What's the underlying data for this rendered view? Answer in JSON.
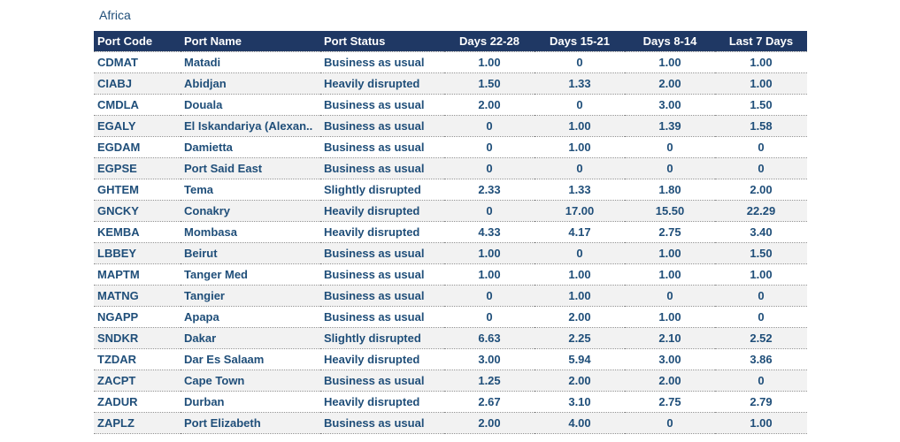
{
  "title": "Africa",
  "table": {
    "columns": [
      {
        "label": "Port Code",
        "align": "left"
      },
      {
        "label": "Port Name",
        "align": "left"
      },
      {
        "label": "Port Status",
        "align": "left"
      },
      {
        "label": "Days 22-28",
        "align": "center"
      },
      {
        "label": "Days 15-21",
        "align": "center"
      },
      {
        "label": "Days 8-14",
        "align": "center"
      },
      {
        "label": "Last 7 Days",
        "align": "center"
      }
    ],
    "rows": [
      [
        "CDMAT",
        "Matadi",
        "Business as usual",
        "1.00",
        "0",
        "1.00",
        "1.00"
      ],
      [
        "CIABJ",
        "Abidjan",
        "Heavily disrupted",
        "1.50",
        "1.33",
        "2.00",
        "1.00"
      ],
      [
        "CMDLA",
        "Douala",
        "Business as usual",
        "2.00",
        "0",
        "3.00",
        "1.50"
      ],
      [
        "EGALY",
        "El Iskandariya (Alexan..",
        "Business as usual",
        "0",
        "1.00",
        "1.39",
        "1.58"
      ],
      [
        "EGDAM",
        "Damietta",
        "Business as usual",
        "0",
        "1.00",
        "0",
        "0"
      ],
      [
        "EGPSE",
        "Port Said East",
        "Business as usual",
        "0",
        "0",
        "0",
        "0"
      ],
      [
        "GHTEM",
        "Tema",
        "Slightly disrupted",
        "2.33",
        "1.33",
        "1.80",
        "2.00"
      ],
      [
        "GNCKY",
        "Conakry",
        "Heavily disrupted",
        "0",
        "17.00",
        "15.50",
        "22.29"
      ],
      [
        "KEMBA",
        "Mombasa",
        "Heavily disrupted",
        "4.33",
        "4.17",
        "2.75",
        "3.40"
      ],
      [
        "LBBEY",
        "Beirut",
        "Business as usual",
        "1.00",
        "0",
        "1.00",
        "1.50"
      ],
      [
        "MAPTM",
        "Tanger Med",
        "Business as usual",
        "1.00",
        "1.00",
        "1.00",
        "1.00"
      ],
      [
        "MATNG",
        "Tangier",
        "Business as usual",
        "0",
        "1.00",
        "0",
        "0"
      ],
      [
        "NGAPP",
        "Apapa",
        "Business as usual",
        "0",
        "2.00",
        "1.00",
        "0"
      ],
      [
        "SNDKR",
        "Dakar",
        "Slightly disrupted",
        "6.63",
        "2.25",
        "2.10",
        "2.52"
      ],
      [
        "TZDAR",
        "Dar Es Salaam",
        "Heavily disrupted",
        "3.00",
        "5.94",
        "3.00",
        "3.86"
      ],
      [
        "ZACPT",
        "Cape Town",
        "Business as usual",
        "1.25",
        "2.00",
        "2.00",
        "0"
      ],
      [
        "ZADUR",
        "Durban",
        "Heavily disrupted",
        "2.67",
        "3.10",
        "2.75",
        "2.79"
      ],
      [
        "ZAPLZ",
        "Port Elizabeth",
        "Business as usual",
        "2.00",
        "4.00",
        "0",
        "1.00"
      ]
    ]
  },
  "colors": {
    "header_bg": "#1F3864",
    "header_text": "#FFFFFF",
    "cell_text": "#1F4E79",
    "title_text": "#1F4E79",
    "row_alt_bg": "#F2F2F2",
    "row_border": "#8F8F8F"
  }
}
